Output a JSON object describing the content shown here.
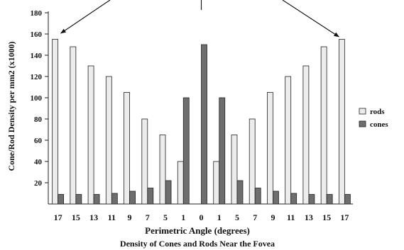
{
  "chart_data": {
    "type": "bar",
    "title": "Density of Cones and Rods Near the Fovea",
    "xlabel": "Perimetric Angle (degrees)",
    "ylabel": "Cone/Rod Density per mm2 (x1000)",
    "ylim": [
      0,
      180
    ],
    "yticks": [
      20,
      40,
      60,
      80,
      100,
      120,
      140,
      160,
      180
    ],
    "categories": [
      "17",
      "15",
      "13",
      "11",
      "9",
      "7",
      "5",
      "1",
      "0",
      "1",
      "5",
      "7",
      "9",
      "11",
      "13",
      "15",
      "17"
    ],
    "series": [
      {
        "name": "rods",
        "color": "#ececec",
        "values": [
          155,
          148,
          130,
          120,
          105,
          80,
          65,
          40,
          0,
          40,
          65,
          80,
          105,
          120,
          130,
          148,
          155
        ]
      },
      {
        "name": "cones",
        "color": "#6e6e6e",
        "values": [
          9,
          9,
          9,
          10,
          12,
          15,
          22,
          100,
          150,
          100,
          22,
          15,
          12,
          10,
          9,
          9,
          9
        ]
      }
    ],
    "legend_position": "right",
    "grid": false,
    "annotations": "three arrows from the top pointing to the outermost 17 bars and the center 0 bar"
  }
}
